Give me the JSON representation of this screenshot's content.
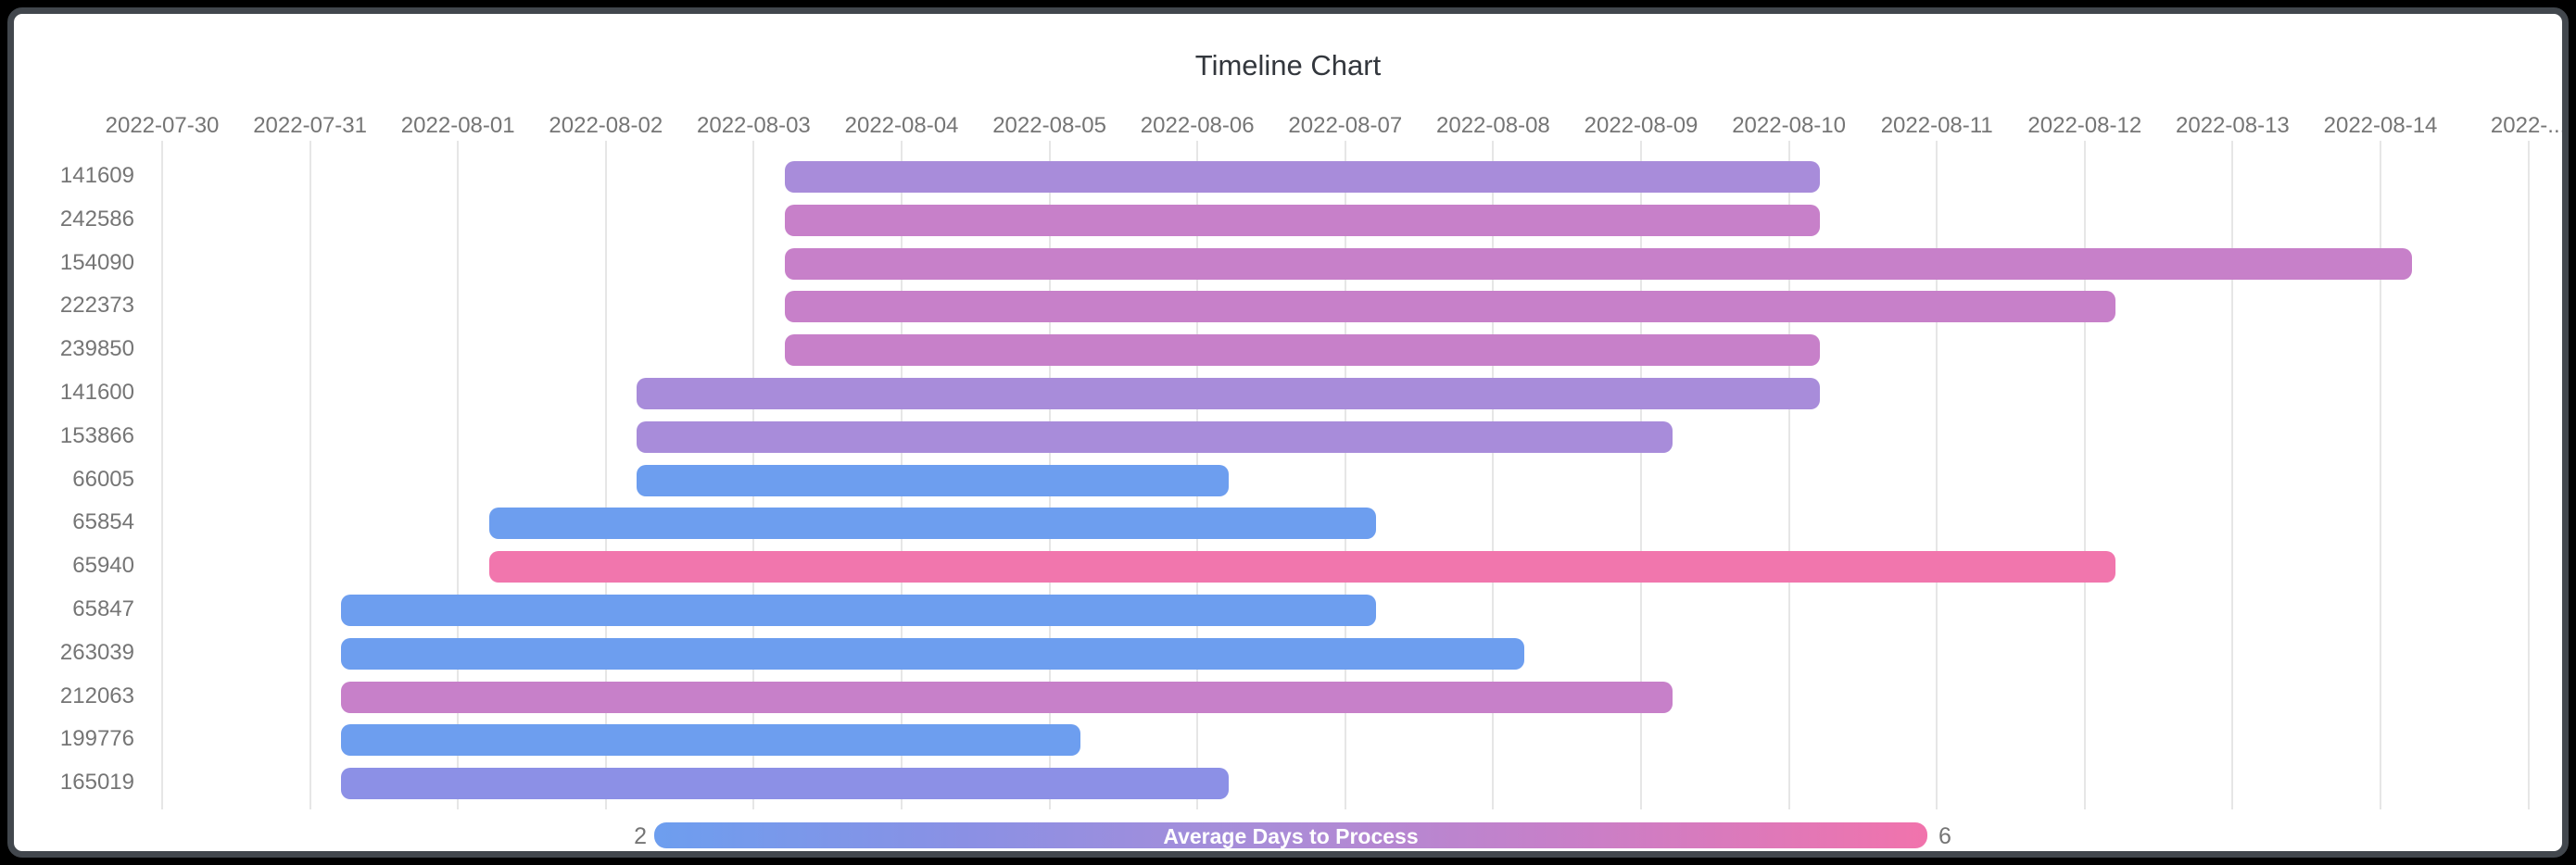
{
  "frame": {
    "background": "#000000",
    "card_border_color": "#42474d",
    "card_background": "#ffffff"
  },
  "colors": {
    "title_text": "#33373d",
    "axis_label_text": "#757575",
    "gridline": "#e6e6e6",
    "blue": "#6d9eef",
    "periwinkle": "#8c90e6",
    "purple": "#a88cda",
    "orchid": "#c780c9",
    "pink": "#f176ad"
  },
  "chart_data": {
    "type": "bar",
    "subtype": "horizontal-timeline-gantt",
    "title": "Timeline Chart",
    "grid": true,
    "x_axis": {
      "position": "top",
      "start_date": "2022-07-30",
      "interval_days": 1,
      "tick_labels": [
        "2022-07-30",
        "2022-07-31",
        "2022-08-01",
        "2022-08-02",
        "2022-08-03",
        "2022-08-04",
        "2022-08-05",
        "2022-08-06",
        "2022-08-07",
        "2022-08-08",
        "2022-08-09",
        "2022-08-10",
        "2022-08-11",
        "2022-08-12",
        "2022-08-13",
        "2022-08-14",
        "2022-..."
      ]
    },
    "bars_time_of_day_offset_days": 0.21,
    "rows": [
      {
        "label": "141609",
        "start": "2022-08-03",
        "end": "2022-08-10",
        "duration_days": 7,
        "color": "#a88cda"
      },
      {
        "label": "242586",
        "start": "2022-08-03",
        "end": "2022-08-10",
        "duration_days": 7,
        "color": "#c780c9"
      },
      {
        "label": "154090",
        "start": "2022-08-03",
        "end": "2022-08-14",
        "duration_days": 11,
        "color": "#c780c9"
      },
      {
        "label": "222373",
        "start": "2022-08-03",
        "end": "2022-08-12",
        "duration_days": 9,
        "color": "#c780c9"
      },
      {
        "label": "239850",
        "start": "2022-08-03",
        "end": "2022-08-10",
        "duration_days": 7,
        "color": "#c780c9"
      },
      {
        "label": "141600",
        "start": "2022-08-02",
        "end": "2022-08-10",
        "duration_days": 8,
        "color": "#a88cda"
      },
      {
        "label": "153866",
        "start": "2022-08-02",
        "end": "2022-08-09",
        "duration_days": 7,
        "color": "#a88cda"
      },
      {
        "label": "66005",
        "start": "2022-08-02",
        "end": "2022-08-06",
        "duration_days": 4,
        "color": "#6d9eef"
      },
      {
        "label": "65854",
        "start": "2022-08-01",
        "end": "2022-08-07",
        "duration_days": 6,
        "color": "#6d9eef"
      },
      {
        "label": "65940",
        "start": "2022-08-01",
        "end": "2022-08-12",
        "duration_days": 11,
        "color": "#f176ad"
      },
      {
        "label": "65847",
        "start": "2022-07-31",
        "end": "2022-08-07",
        "duration_days": 7,
        "color": "#6d9eef"
      },
      {
        "label": "263039",
        "start": "2022-07-31",
        "end": "2022-08-08",
        "duration_days": 8,
        "color": "#6d9eef"
      },
      {
        "label": "212063",
        "start": "2022-07-31",
        "end": "2022-08-09",
        "duration_days": 9,
        "color": "#c780c9"
      },
      {
        "label": "199776",
        "start": "2022-07-31",
        "end": "2022-08-05",
        "duration_days": 5,
        "color": "#6d9eef"
      },
      {
        "label": "165019",
        "start": "2022-07-31",
        "end": "2022-08-06",
        "duration_days": 6,
        "color": "#8c90e6"
      }
    ],
    "legend": {
      "label": "Average Days to Process",
      "min": "2",
      "max": "6",
      "legend_position": "bottom",
      "gradient": [
        "#6d9eef",
        "#8b90e4",
        "#a98dd8",
        "#c87fc8",
        "#f173ac"
      ]
    }
  }
}
